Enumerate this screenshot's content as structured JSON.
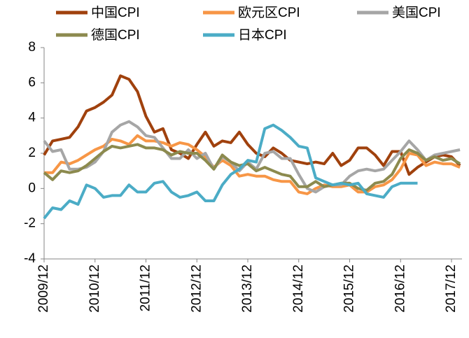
{
  "chart_data": {
    "type": "line",
    "categories": [
      "2009/12",
      null,
      null,
      null,
      null,
      null,
      "2010/12",
      null,
      null,
      null,
      null,
      null,
      "2011/12",
      null,
      null,
      null,
      null,
      null,
      "2012/12",
      null,
      null,
      null,
      null,
      null,
      "2013/12",
      null,
      null,
      null,
      null,
      null,
      "2014/12",
      null,
      null,
      null,
      null,
      null,
      "2015/12",
      null,
      null,
      null,
      null,
      null,
      "2016/12",
      null,
      null,
      null,
      null,
      null,
      "2017/12",
      null
    ],
    "series": [
      {
        "name": "中国CPI",
        "color": "#a0410d",
        "values": [
          1.9,
          2.7,
          2.8,
          2.9,
          3.5,
          4.4,
          4.6,
          4.9,
          5.3,
          6.4,
          6.2,
          5.5,
          4.1,
          3.2,
          3.4,
          2.2,
          2.0,
          1.7,
          2.5,
          3.2,
          2.4,
          2.7,
          2.6,
          3.2,
          2.5,
          2.0,
          1.8,
          2.3,
          2.0,
          1.6,
          1.5,
          1.4,
          1.5,
          1.4,
          2.0,
          1.3,
          1.6,
          2.3,
          2.3,
          1.9,
          1.3,
          2.1,
          2.1,
          0.8,
          1.2,
          1.5,
          1.8,
          1.9,
          1.8,
          1.3
        ]
      },
      {
        "name": "欧元区CPI",
        "color": "#f79646",
        "values": [
          0.9,
          0.9,
          1.5,
          1.4,
          1.6,
          1.9,
          2.2,
          2.4,
          2.8,
          2.7,
          2.5,
          3.0,
          2.7,
          2.7,
          2.6,
          2.4,
          2.6,
          2.5,
          2.2,
          1.8,
          1.2,
          1.6,
          1.3,
          0.7,
          0.8,
          0.7,
          0.7,
          0.5,
          0.4,
          0.4,
          -0.2,
          -0.3,
          0.0,
          0.2,
          0.1,
          0.1,
          0.2,
          -0.2,
          -0.2,
          0.1,
          0.2,
          0.5,
          1.1,
          2.0,
          1.9,
          1.3,
          1.5,
          1.4,
          1.4,
          1.2
        ]
      },
      {
        "name": "美国CPI",
        "color": "#a6a6a6",
        "values": [
          2.7,
          2.1,
          2.2,
          1.1,
          1.1,
          1.2,
          1.5,
          2.1,
          3.2,
          3.6,
          3.8,
          3.5,
          3.0,
          2.9,
          2.3,
          1.7,
          1.7,
          2.2,
          1.7,
          2.0,
          1.1,
          1.8,
          1.5,
          1.0,
          1.5,
          1.1,
          2.0,
          2.1,
          1.7,
          1.7,
          0.8,
          0.0,
          -0.2,
          0.1,
          0.2,
          0.2,
          0.7,
          1.0,
          1.1,
          1.0,
          1.1,
          1.6,
          2.1,
          2.7,
          2.2,
          1.6,
          1.9,
          2.0,
          2.1,
          2.2
        ]
      },
      {
        "name": "德国CPI",
        "color": "#8c8a4e",
        "values": [
          0.9,
          0.5,
          1.0,
          0.9,
          1.0,
          1.3,
          1.7,
          2.1,
          2.4,
          2.3,
          2.4,
          2.5,
          2.3,
          2.3,
          2.2,
          1.9,
          2.1,
          2.0,
          2.0,
          1.6,
          1.1,
          1.9,
          1.5,
          1.3,
          1.4,
          1.0,
          1.2,
          1.0,
          0.8,
          0.7,
          0.1,
          0.1,
          0.4,
          0.1,
          0.2,
          0.3,
          0.3,
          0.0,
          -0.1,
          0.3,
          0.4,
          0.8,
          1.7,
          2.2,
          2.0,
          1.6,
          1.8,
          1.6,
          1.7,
          1.4
        ]
      },
      {
        "name": "日本CPI",
        "color": "#4bacc6",
        "values": [
          -1.7,
          -1.1,
          -1.2,
          -0.7,
          -0.9,
          0.2,
          0.0,
          -0.5,
          -0.4,
          -0.4,
          0.2,
          -0.2,
          -0.2,
          0.3,
          0.4,
          -0.2,
          -0.5,
          -0.4,
          -0.2,
          -0.7,
          -0.7,
          0.2,
          0.8,
          1.1,
          1.6,
          1.5,
          3.4,
          3.6,
          3.3,
          2.9,
          2.4,
          2.3,
          0.6,
          0.4,
          0.2,
          0.3,
          0.2,
          0.3,
          -0.3,
          -0.4,
          -0.5,
          0.1,
          0.3,
          0.3,
          0.3,
          null,
          null,
          null,
          null,
          null
        ]
      }
    ],
    "ylim": [
      -4,
      8
    ],
    "yticks": [
      -4,
      -2,
      0,
      2,
      4,
      6,
      8
    ],
    "grid": false
  }
}
